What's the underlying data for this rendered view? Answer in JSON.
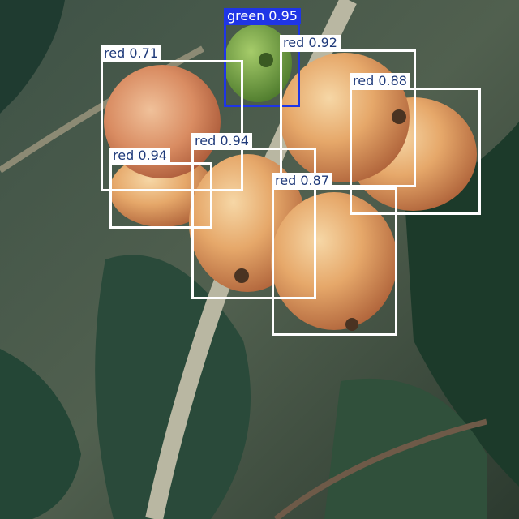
{
  "image": {
    "description_tags": [
      "coffee cherries",
      "branch",
      "leaves",
      "object detection"
    ]
  },
  "colors": {
    "red_class_box": "#ffffff",
    "green_class_box": "#1f35e6"
  },
  "detections": [
    {
      "label": "green 0.95",
      "class": "green"
    },
    {
      "label": "red 0.92",
      "class": "red"
    },
    {
      "label": "red 0.71",
      "class": "red"
    },
    {
      "label": "red 0.88",
      "class": "red"
    },
    {
      "label": "red 0.94",
      "class": "red"
    },
    {
      "label": "red 0.94",
      "class": "red"
    },
    {
      "label": "red 0.87",
      "class": "red"
    }
  ]
}
